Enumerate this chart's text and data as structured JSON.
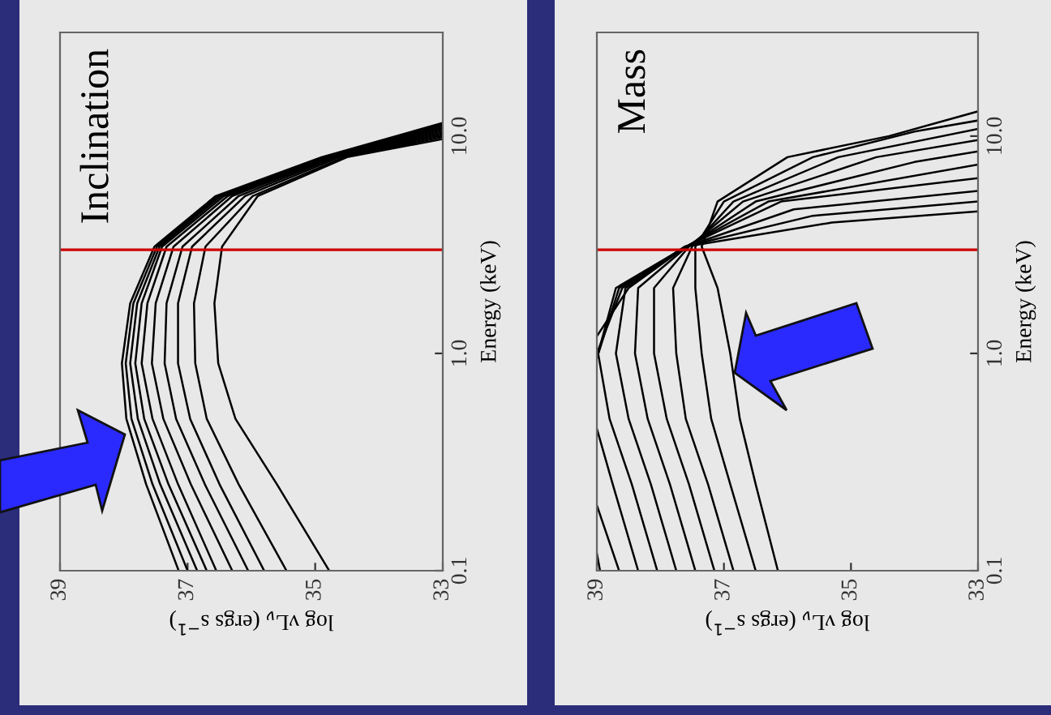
{
  "chart_data": [
    {
      "type": "line",
      "title": "Inclination",
      "xlabel": "log νL$_{ν}$ (ergs s$^{−1}$)",
      "ylabel": "Energy (keV)",
      "xlim": [
        39,
        33
      ],
      "xticks": [
        39,
        37,
        35,
        33
      ],
      "ylim": [
        0.1,
        30
      ],
      "yticks": [
        {
          "value": 0.1,
          "label": "0.1"
        },
        {
          "value": 1,
          "label": "1.0"
        },
        {
          "value": 10,
          "label": "10.0"
        }
      ],
      "log": "y",
      "grid": false,
      "legend": false,
      "ref_lines": [
        {
          "axis": "y",
          "value": 3,
          "color": "#cc0000"
        }
      ],
      "series": [
        {
          "color": "#000000",
          "x": [
            37.14,
            37.65,
            37.96,
            38.03,
            37.9,
            37.52,
            36.56,
            34.9,
            33.0
          ],
          "values": [
            0.1,
            0.25,
            0.5,
            0.9,
            1.7,
            3.1,
            5.3,
            8,
            11.5
          ]
        },
        {
          "color": "#000000",
          "x": [
            37.0,
            37.55,
            37.88,
            37.97,
            37.85,
            37.48,
            36.52,
            34.87,
            33.0
          ],
          "values": [
            0.1,
            0.25,
            0.5,
            0.9,
            1.7,
            3.1,
            5.3,
            8,
            11.3
          ]
        },
        {
          "color": "#000000",
          "x": [
            36.85,
            37.43,
            37.78,
            37.9,
            37.79,
            37.44,
            36.48,
            34.84,
            33.0
          ],
          "values": [
            0.1,
            0.25,
            0.5,
            0.9,
            1.7,
            3.1,
            5.3,
            8,
            11.1
          ]
        },
        {
          "color": "#000000",
          "x": [
            36.7,
            37.3,
            37.68,
            37.82,
            37.72,
            37.4,
            36.43,
            34.8,
            33.0
          ],
          "values": [
            0.1,
            0.25,
            0.5,
            0.9,
            1.7,
            3.1,
            5.3,
            8,
            10.9
          ]
        },
        {
          "color": "#000000",
          "x": [
            36.55,
            37.15,
            37.55,
            37.72,
            37.63,
            37.33,
            36.37,
            34.76,
            33.0
          ],
          "values": [
            0.1,
            0.25,
            0.5,
            0.9,
            1.7,
            3.1,
            5.3,
            8,
            10.7
          ]
        },
        {
          "color": "#000000",
          "x": [
            36.3,
            36.95,
            37.38,
            37.56,
            37.5,
            37.22,
            36.3,
            34.72,
            33.0
          ],
          "values": [
            0.1,
            0.25,
            0.5,
            0.9,
            1.7,
            3.1,
            5.3,
            8,
            10.5
          ]
        },
        {
          "color": "#000000",
          "x": [
            36.05,
            36.73,
            37.18,
            37.36,
            37.33,
            37.08,
            36.2,
            34.68,
            33.0
          ],
          "values": [
            0.1,
            0.25,
            0.5,
            0.9,
            1.7,
            3.1,
            5.3,
            8,
            10.3
          ]
        },
        {
          "color": "#000000",
          "x": [
            35.8,
            36.5,
            36.96,
            37.15,
            37.15,
            36.93,
            36.1,
            34.62,
            33.0
          ],
          "values": [
            0.1,
            0.25,
            0.5,
            0.9,
            1.7,
            3.1,
            5.3,
            8,
            10.1
          ]
        },
        {
          "color": "#000000",
          "x": [
            35.45,
            36.2,
            36.7,
            36.88,
            36.9,
            36.72,
            35.98,
            34.55,
            33.0
          ],
          "values": [
            0.1,
            0.25,
            0.5,
            0.9,
            1.7,
            3.1,
            5.3,
            8,
            9.9
          ]
        },
        {
          "color": "#000000",
          "x": [
            34.78,
            35.6,
            36.25,
            36.52,
            36.58,
            36.46,
            35.9,
            34.5,
            33.0
          ],
          "values": [
            0.1,
            0.25,
            0.5,
            0.9,
            1.7,
            3.1,
            5.3,
            8,
            9.7
          ]
        }
      ]
    },
    {
      "type": "line",
      "title": "Mass",
      "xlabel": "log νL$_{ν}$ (ergs s$^{−1}$)",
      "ylabel": "Energy (keV)",
      "xlim": [
        39,
        33
      ],
      "xticks": [
        39,
        37,
        35,
        33
      ],
      "ylim": [
        0.1,
        30
      ],
      "yticks": [
        {
          "value": 0.1,
          "label": "0.1"
        },
        {
          "value": 1,
          "label": "1.0"
        },
        {
          "value": 10,
          "label": "10.0"
        }
      ],
      "log": "y",
      "grid": false,
      "legend": false,
      "ref_lines": [
        {
          "axis": "y",
          "value": 3,
          "color": "#cc0000"
        }
      ],
      "series": [
        {
          "color": "#000000",
          "x": [
            38.95,
            39.0
          ],
          "values": [
            0.1,
            0.12
          ]
        },
        {
          "color": "#000000",
          "x": [
            39.0,
            38.5,
            37.6,
            35.3,
            33.0
          ],
          "values": [
            1.2,
            2,
            3.1,
            4.0,
            4.5
          ]
        },
        {
          "color": "#000000",
          "x": [
            38.65,
            39.0
          ],
          "values": [
            0.1,
            0.2
          ]
        },
        {
          "color": "#000000",
          "x": [
            39.0,
            38.6,
            37.62,
            35.6,
            33.0
          ],
          "values": [
            1.0,
            2,
            3.1,
            4.3,
            5.0
          ]
        },
        {
          "color": "#000000",
          "x": [
            38.35,
            38.75,
            39.0
          ],
          "values": [
            0.1,
            0.25,
            0.45
          ]
        },
        {
          "color": "#000000",
          "x": [
            39.0,
            38.65,
            37.6,
            35.9,
            33.0
          ],
          "values": [
            0.95,
            2,
            3.1,
            4.6,
            5.6
          ]
        },
        {
          "color": "#000000",
          "x": [
            38.05,
            38.45,
            38.8,
            38.98,
            38.7,
            37.6,
            36.1,
            33.0
          ],
          "values": [
            0.1,
            0.25,
            0.5,
            1,
            2,
            3.1,
            5,
            6.4
          ]
        },
        {
          "color": "#000000",
          "x": [
            37.75,
            38.15,
            38.5,
            38.7,
            38.55,
            37.6,
            36.3,
            33.0
          ],
          "values": [
            0.1,
            0.25,
            0.5,
            1,
            2,
            3.1,
            5,
            7.4
          ]
        },
        {
          "color": "#000000",
          "x": [
            37.45,
            37.85,
            38.2,
            38.4,
            38.35,
            37.58,
            36.5,
            34.0,
            33.0
          ],
          "values": [
            0.1,
            0.25,
            0.5,
            1,
            2,
            3.1,
            5,
            7.6,
            8.5
          ]
        },
        {
          "color": "#000000",
          "x": [
            37.15,
            37.55,
            37.9,
            38.1,
            38.1,
            37.55,
            36.7,
            34.6,
            33.0
          ],
          "values": [
            0.1,
            0.25,
            0.5,
            1,
            2,
            3.1,
            5,
            8,
            9.6
          ]
        },
        {
          "color": "#000000",
          "x": [
            36.85,
            37.25,
            37.6,
            37.75,
            37.8,
            37.5,
            36.85,
            35.2,
            33.0
          ],
          "values": [
            0.1,
            0.25,
            0.5,
            1,
            2,
            3.1,
            5,
            8,
            10.8
          ]
        },
        {
          "color": "#000000",
          "x": [
            36.5,
            36.9,
            37.2,
            37.35,
            37.45,
            37.45,
            37.0,
            35.6,
            34.0,
            33.0
          ],
          "values": [
            0.1,
            0.25,
            0.5,
            1,
            2,
            3.1,
            5,
            8,
            10.5,
            11.8
          ]
        },
        {
          "color": "#000000",
          "x": [
            36.15,
            36.5,
            36.75,
            36.9,
            37.1,
            37.35,
            37.1,
            36.0,
            34.4,
            33.0
          ],
          "values": [
            0.1,
            0.25,
            0.5,
            1,
            2,
            3.1,
            5,
            8,
            10,
            13.0
          ]
        }
      ]
    }
  ]
}
